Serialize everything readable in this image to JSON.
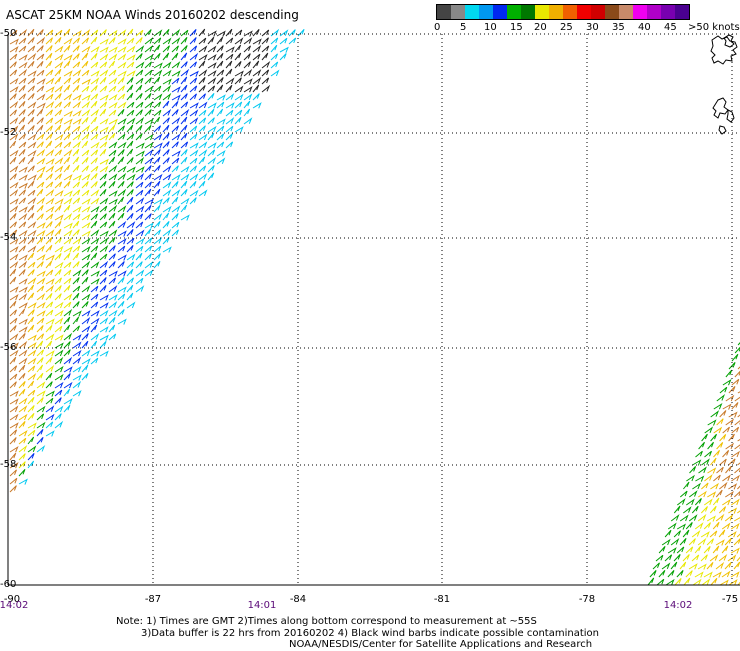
{
  "title": "ASCAT 25KM NOAA Winds 20160202 descending",
  "legend": {
    "colors": [
      "#444444",
      "#888888",
      "#00d8f0",
      "#0098f0",
      "#0028f0",
      "#00b000",
      "#007800",
      "#e8e800",
      "#f0b000",
      "#f06000",
      "#f00000",
      "#d00000",
      "#8a4a1a",
      "#c88a6a",
      "#f000f0",
      "#b000c8",
      "#7800b0",
      "#4a0090"
    ],
    "labels": [
      "0",
      "5",
      "10",
      "15",
      "20",
      "25",
      "30",
      "35",
      "40",
      "45",
      ">50 knots"
    ]
  },
  "lat_labels": [
    "-50",
    "-52",
    "-54",
    "-56",
    "-58",
    "-60"
  ],
  "lon_labels": [
    "-90",
    "-87",
    "-84",
    "-81",
    "-78",
    "-75"
  ],
  "time_labels": [
    "14:02",
    "14:01",
    "14:02"
  ],
  "notes": [
    "Note: 1) Times are GMT 2)Times along bottom correspond to measurement at ~55S",
    "3)Data buffer is 22 hrs from 20160202 4) Black wind barbs indicate possible contamination",
    "NOAA/NESDIS/Center for Satellite Applications and Research"
  ],
  "map_extent": {
    "lon_min": -90,
    "lon_max": -75,
    "lat_max": -50,
    "lat_min": -60
  },
  "colors": {
    "grid": "#000000",
    "coast": "#000000",
    "time_text": "#5a0a78"
  }
}
